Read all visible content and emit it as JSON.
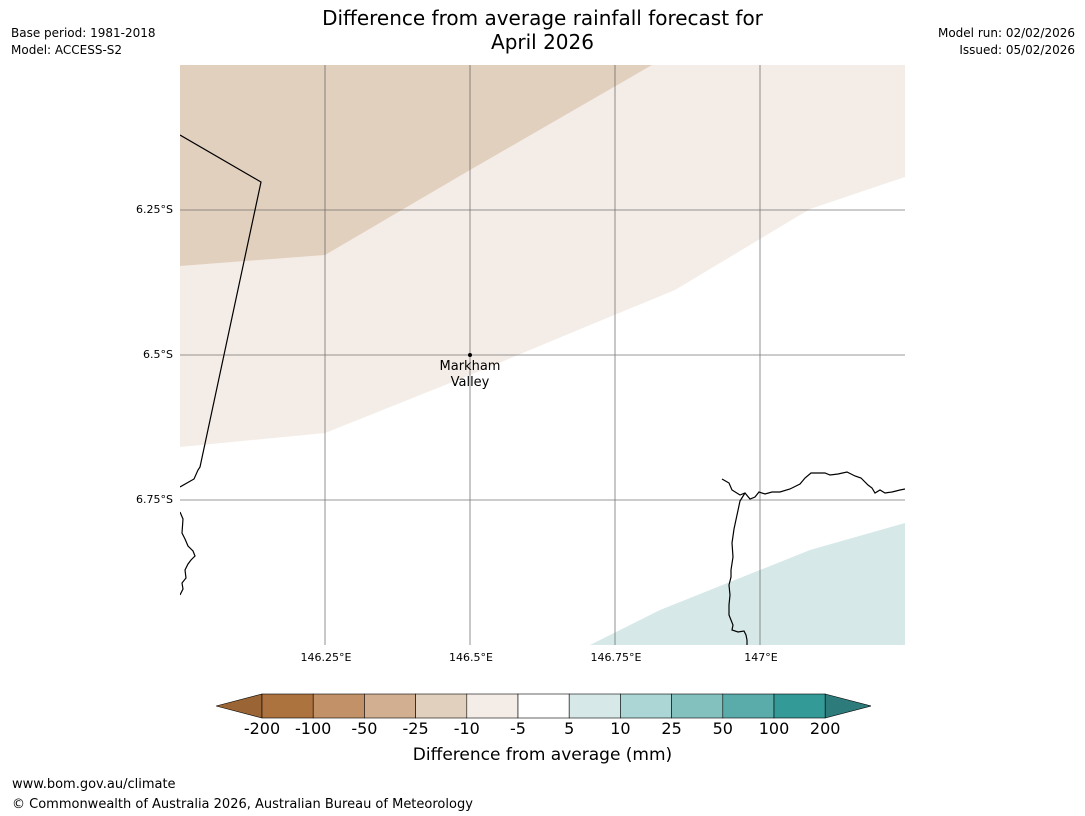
{
  "title": {
    "line1": "Difference from average rainfall forecast for",
    "line2": "April 2026"
  },
  "meta_left": {
    "base_period": "Base period: 1981-2018",
    "model": "Model: ACCESS-S2"
  },
  "meta_right": {
    "model_run": "Model run: 02/02/2026",
    "issued": "Issued: 05/02/2026"
  },
  "map": {
    "lat_labels": [
      "6.25°S",
      "6.5°S",
      "6.75°S"
    ],
    "lon_labels": [
      "146.25°E",
      "146.5°E",
      "146.75°E",
      "147°E"
    ],
    "place": {
      "name_line1": "Markham",
      "name_line2": "Valley",
      "lat": -6.5,
      "lon": 146.5
    },
    "colors": {
      "minus25_to_minus10": "#e2d0bf",
      "minus10_to_minus5": "#f4ede7",
      "minus5_to_5": "#ffffff",
      "plus5_to_10": "#d6e9e8"
    }
  },
  "colorbar": {
    "ticks": [
      "-200",
      "-100",
      "-50",
      "-25",
      "-10",
      "-5",
      "5",
      "10",
      "25",
      "50",
      "100",
      "200"
    ],
    "colors": [
      "#9a6434",
      "#ad733e",
      "#c29168",
      "#d2af90",
      "#e2d0bf",
      "#f4ede7",
      "#ffffff",
      "#d6e9e8",
      "#acd5d5",
      "#83c1be",
      "#5aacab",
      "#339a98",
      "#2d7b7a"
    ],
    "label": "Difference from average (mm)"
  },
  "footer": {
    "url": "www.bom.gov.au/climate",
    "copyright": "© Commonwealth of Australia 2026, Australian Bureau of Meteorology"
  }
}
